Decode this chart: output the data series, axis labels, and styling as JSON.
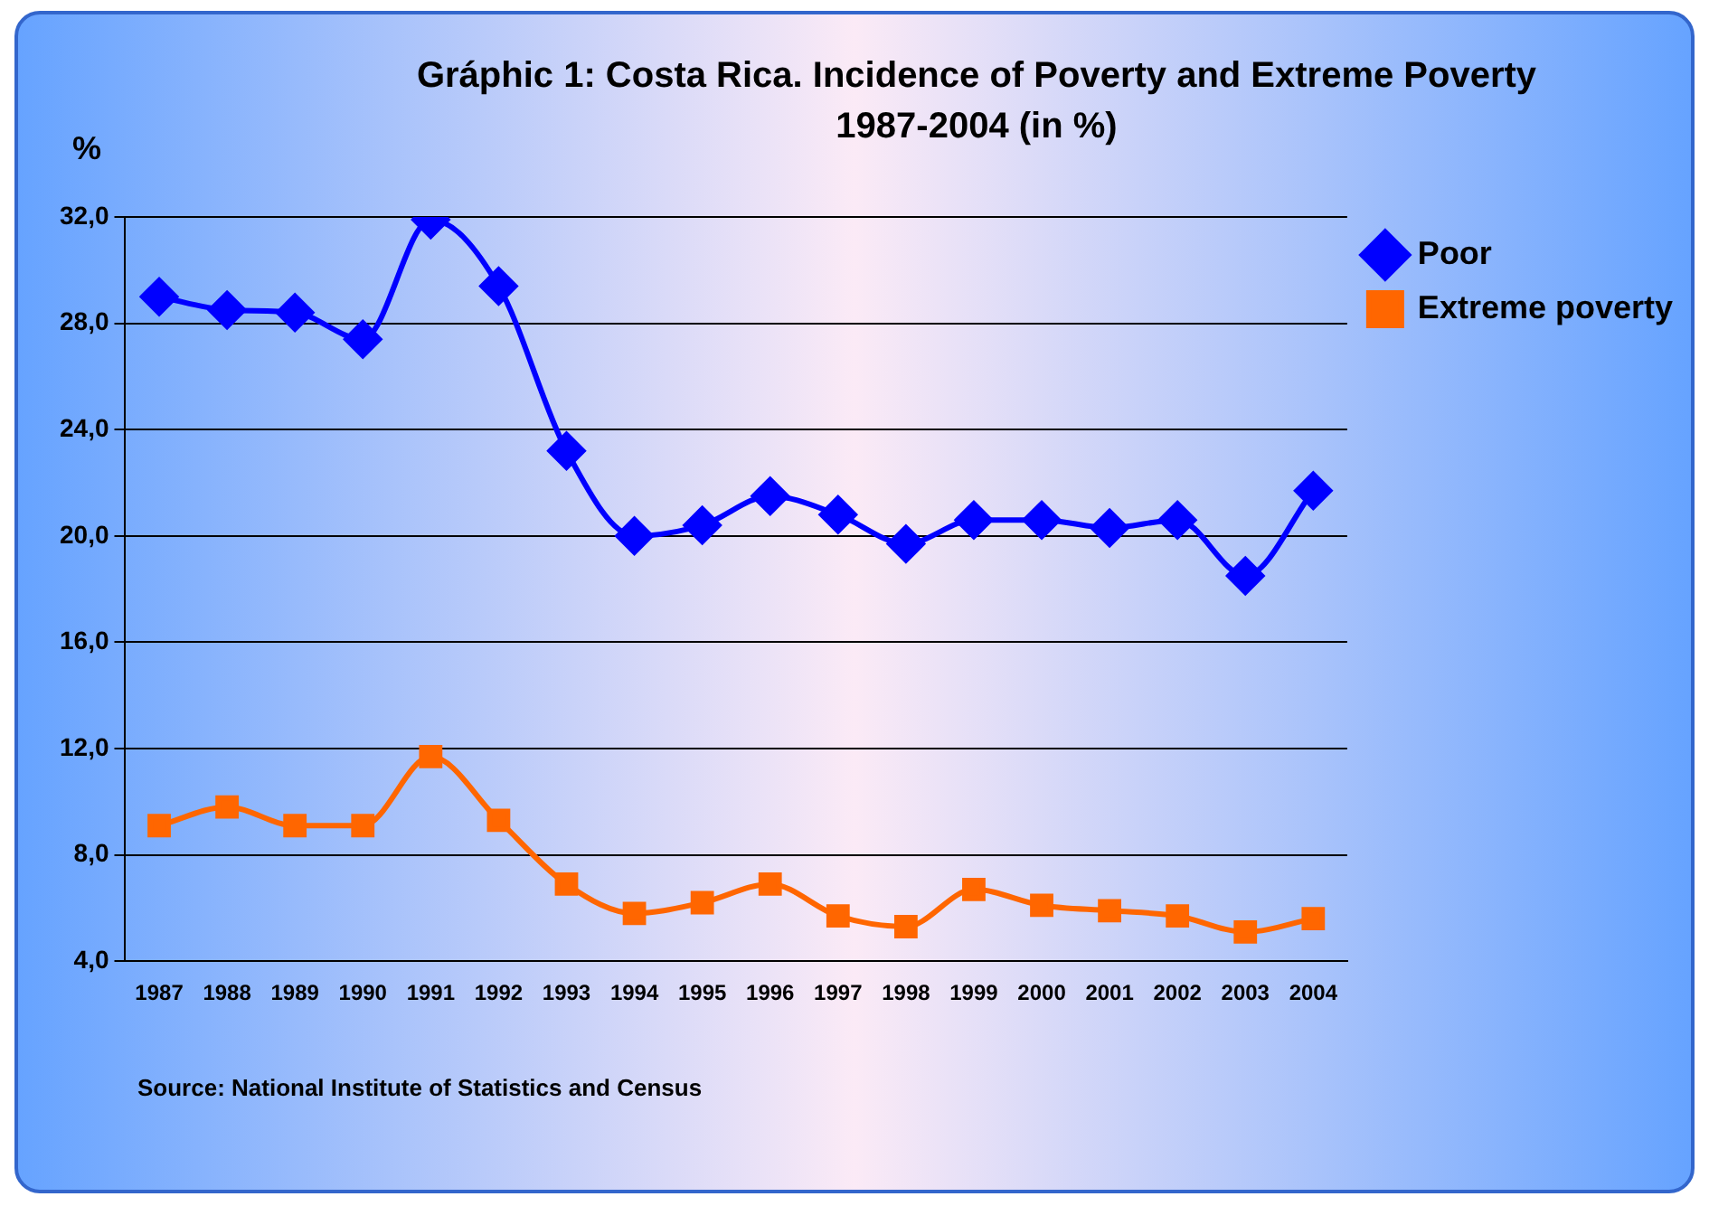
{
  "chart_data": {
    "type": "line",
    "title": "Gráphic 1: Costa Rica. Incidence of Poverty and Extreme Poverty\n1987-2004 (in %)",
    "ylabel": "%",
    "categories": [
      "1987",
      "1988",
      "1989",
      "1990",
      "1991",
      "1992",
      "1993",
      "1994",
      "1995",
      "1996",
      "1997",
      "1998",
      "1999",
      "2000",
      "2001",
      "2002",
      "2003",
      "2004"
    ],
    "series": [
      {
        "name": "Poor",
        "color": "#0000ff",
        "marker": "diamond",
        "values": [
          29.0,
          28.5,
          28.4,
          27.4,
          31.9,
          29.4,
          23.2,
          20.0,
          20.4,
          21.5,
          20.8,
          19.7,
          20.6,
          20.6,
          20.3,
          20.6,
          18.5,
          21.7
        ]
      },
      {
        "name": "Extreme poverty",
        "color": "#ff6600",
        "marker": "square",
        "values": [
          9.1,
          9.8,
          9.1,
          9.1,
          11.7,
          9.3,
          6.9,
          5.8,
          6.2,
          6.9,
          5.7,
          5.3,
          6.7,
          6.1,
          5.9,
          5.7,
          5.1,
          5.6
        ]
      }
    ],
    "ylim": [
      4,
      32
    ],
    "yticks": [
      {
        "value": 4,
        "label": "4,0"
      },
      {
        "value": 8,
        "label": "8,0"
      },
      {
        "value": 12,
        "label": "12,0"
      },
      {
        "value": 16,
        "label": "16,0"
      },
      {
        "value": 20,
        "label": "20,0"
      },
      {
        "value": 24,
        "label": "24,0"
      },
      {
        "value": 28,
        "label": "28,0"
      },
      {
        "value": 32,
        "label": "32,0"
      }
    ],
    "grid": "y",
    "legend": "top right",
    "annotations": [
      "Source:  National Institute of Statistics and Census"
    ]
  }
}
